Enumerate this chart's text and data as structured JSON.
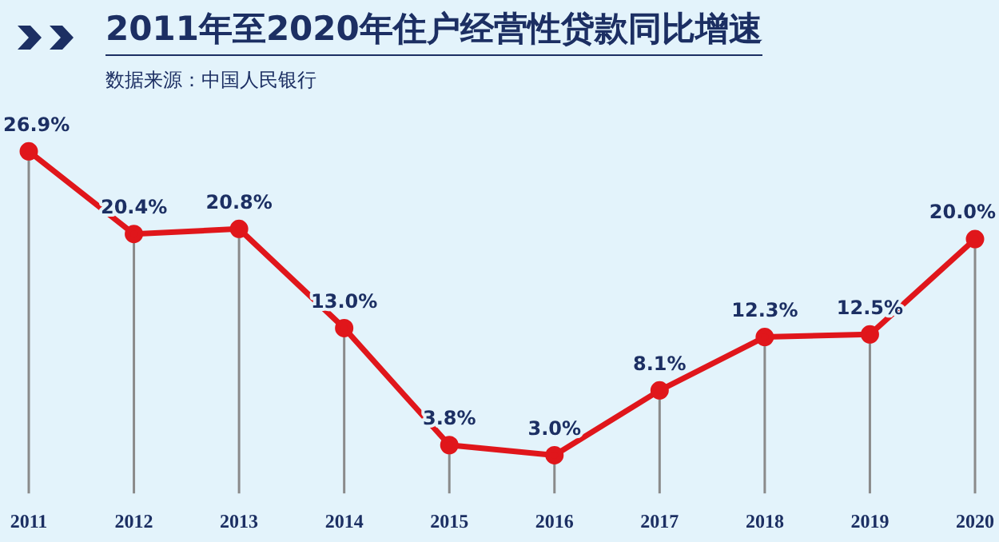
{
  "chart_data": {
    "type": "line",
    "title": "2011年至2020年住户经营性贷款同比增速",
    "annotations": [
      "数据来源：中国人民银行"
    ],
    "categories": [
      "2011",
      "2012",
      "2013",
      "2014",
      "2015",
      "2016",
      "2017",
      "2018",
      "2019",
      "2020"
    ],
    "values": [
      26.9,
      20.4,
      20.8,
      13.0,
      3.8,
      3.0,
      8.1,
      12.3,
      12.5,
      20.0
    ],
    "value_labels": [
      "26.9%",
      "20.4%",
      "20.8%",
      "13.0%",
      "3.8%",
      "3.0%",
      "8.1%",
      "12.3%",
      "12.5%",
      "20.0%"
    ],
    "color": "#e0161b",
    "marker": "circle",
    "line_style": "solid",
    "grid": "x",
    "legend": false,
    "tick_labels": "x"
  }
}
